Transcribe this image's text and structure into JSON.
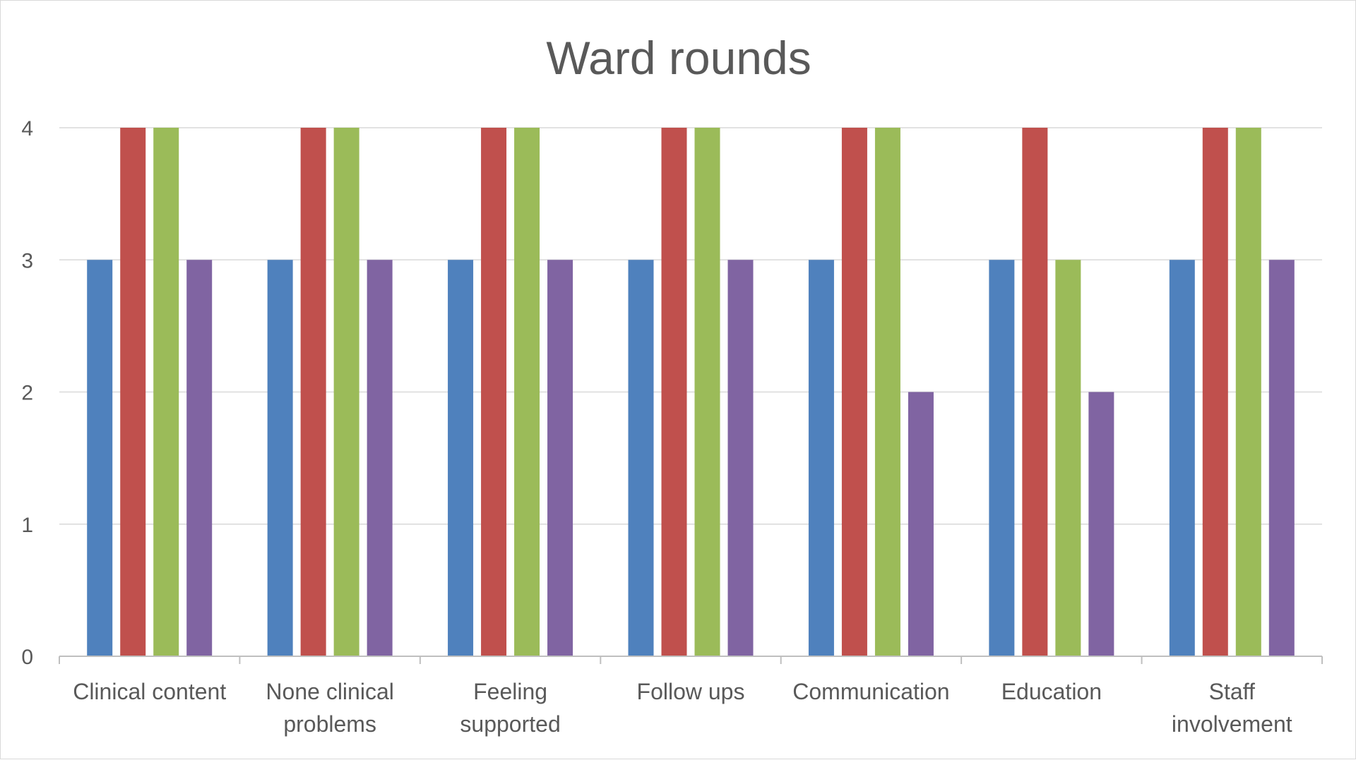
{
  "chart_data": {
    "type": "bar",
    "title": "Ward rounds",
    "xlabel": "",
    "ylabel": "",
    "ylim": [
      0,
      4
    ],
    "yticks": [
      0,
      1,
      2,
      3,
      4
    ],
    "grid": true,
    "legend": "none",
    "categories": [
      [
        "Clinical content"
      ],
      [
        "None clinical",
        "problems"
      ],
      [
        "Feeling",
        "supported"
      ],
      [
        "Follow ups"
      ],
      [
        "Communication"
      ],
      [
        "Education"
      ],
      [
        "Staff",
        "involvement"
      ]
    ],
    "series": [
      {
        "color": "#4f81bd",
        "values": [
          3,
          3,
          3,
          3,
          3,
          3,
          3
        ]
      },
      {
        "color": "#c0504d",
        "values": [
          4,
          4,
          4,
          4,
          4,
          4,
          4
        ]
      },
      {
        "color": "#9bbb59",
        "values": [
          4,
          4,
          4,
          4,
          4,
          3,
          4
        ]
      },
      {
        "color": "#8064a2",
        "values": [
          3,
          3,
          3,
          3,
          2,
          2,
          3
        ]
      }
    ]
  }
}
